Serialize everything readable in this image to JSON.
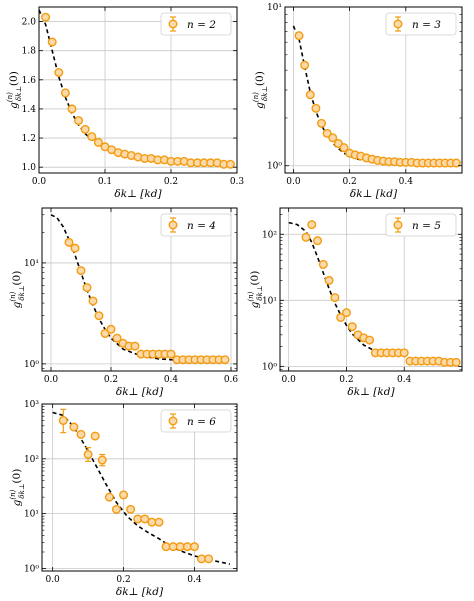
{
  "chart_data": [
    {
      "type": "scatter",
      "panel": "n2",
      "xlabel": "δk⊥ [kd]",
      "ylabel": "g(n)δk⊥(0)",
      "yscale": "linear",
      "xlim": [
        0,
        0.3
      ],
      "ylim": [
        0.96,
        2.1
      ],
      "xticks": [
        0.0,
        0.1,
        0.2,
        0.3
      ],
      "xtick_labels": [
        "0.0",
        "0.1",
        "0.2",
        "0.3"
      ],
      "yticks": [
        1.0,
        1.2,
        1.4,
        1.6,
        1.8,
        2.0
      ],
      "ytick_labels": [
        "1.0",
        "1.2",
        "1.4",
        "1.6",
        "1.8",
        "2.0"
      ],
      "grid": true,
      "legend": {
        "label": "n = 2",
        "position": "top-right"
      },
      "points": {
        "x": [
          0.01,
          0.02,
          0.03,
          0.04,
          0.05,
          0.06,
          0.07,
          0.08,
          0.09,
          0.1,
          0.11,
          0.12,
          0.13,
          0.14,
          0.15,
          0.16,
          0.17,
          0.18,
          0.19,
          0.2,
          0.21,
          0.22,
          0.23,
          0.24,
          0.25,
          0.26,
          0.27,
          0.28,
          0.29
        ],
        "y": [
          2.03,
          1.86,
          1.65,
          1.51,
          1.4,
          1.32,
          1.26,
          1.21,
          1.17,
          1.14,
          1.12,
          1.1,
          1.09,
          1.08,
          1.07,
          1.06,
          1.06,
          1.05,
          1.05,
          1.04,
          1.04,
          1.04,
          1.03,
          1.03,
          1.03,
          1.03,
          1.03,
          1.02,
          1.02
        ]
      },
      "fit": {
        "x": [
          0.0,
          0.01,
          0.02,
          0.03,
          0.04,
          0.05,
          0.06,
          0.07,
          0.08,
          0.1,
          0.12,
          0.14,
          0.16,
          0.18,
          0.2,
          0.22,
          0.25,
          0.28,
          0.295
        ],
        "y": [
          2.08,
          1.98,
          1.8,
          1.62,
          1.48,
          1.37,
          1.29,
          1.23,
          1.19,
          1.13,
          1.1,
          1.08,
          1.06,
          1.05,
          1.04,
          1.03,
          1.03,
          1.02,
          1.02
        ]
      }
    },
    {
      "type": "scatter",
      "panel": "n3",
      "xlabel": "δk⊥ [kd]",
      "ylabel": "g(n)δk⊥(0)",
      "yscale": "log",
      "xlim": [
        -0.03,
        0.6
      ],
      "ylim": [
        0.9,
        10
      ],
      "xticks": [
        0.0,
        0.2,
        0.4
      ],
      "xtick_labels": [
        "0.0",
        "0.2",
        "0.4"
      ],
      "yticks": [
        1,
        10
      ],
      "ytick_labels": [
        "10⁰",
        "10¹"
      ],
      "grid": true,
      "legend": {
        "label": "n = 3",
        "position": "top-right"
      },
      "points": {
        "x": [
          0.02,
          0.04,
          0.06,
          0.08,
          0.1,
          0.12,
          0.14,
          0.16,
          0.18,
          0.2,
          0.22,
          0.24,
          0.26,
          0.28,
          0.3,
          0.32,
          0.34,
          0.36,
          0.38,
          0.4,
          0.42,
          0.44,
          0.46,
          0.48,
          0.5,
          0.52,
          0.54,
          0.56,
          0.58
        ],
        "y": [
          6.6,
          4.3,
          2.8,
          2.3,
          1.85,
          1.6,
          1.5,
          1.38,
          1.3,
          1.2,
          1.17,
          1.15,
          1.12,
          1.1,
          1.08,
          1.07,
          1.06,
          1.06,
          1.05,
          1.05,
          1.05,
          1.04,
          1.04,
          1.04,
          1.04,
          1.04,
          1.04,
          1.04,
          1.04
        ]
      },
      "fit": {
        "x": [
          0.0,
          0.02,
          0.04,
          0.06,
          0.08,
          0.1,
          0.12,
          0.15,
          0.18,
          0.22,
          0.26,
          0.3,
          0.35,
          0.4,
          0.5,
          0.59
        ],
        "y": [
          7.6,
          6.3,
          4.2,
          2.9,
          2.2,
          1.8,
          1.55,
          1.33,
          1.2,
          1.11,
          1.07,
          1.05,
          1.04,
          1.03,
          1.03,
          1.03
        ]
      }
    },
    {
      "type": "scatter",
      "panel": "n4",
      "xlabel": "δk⊥ [kd]",
      "ylabel": "g(n)δk⊥(0)",
      "yscale": "log",
      "xlim": [
        -0.03,
        0.62
      ],
      "ylim": [
        0.85,
        35
      ],
      "xticks": [
        0.0,
        0.2,
        0.4,
        0.6
      ],
      "xtick_labels": [
        "0.0",
        "0.2",
        "0.4",
        "0.6"
      ],
      "yticks": [
        1,
        10
      ],
      "ytick_labels": [
        "10⁰",
        "10¹"
      ],
      "grid": true,
      "legend": {
        "label": "n = 4",
        "position": "top-right"
      },
      "points": {
        "x": [
          0.06,
          0.08,
          0.1,
          0.12,
          0.14,
          0.16,
          0.18,
          0.2,
          0.22,
          0.24,
          0.26,
          0.28,
          0.3,
          0.32,
          0.34,
          0.36,
          0.38,
          0.4,
          0.42,
          0.44,
          0.46,
          0.48,
          0.5,
          0.52,
          0.54,
          0.56,
          0.58
        ],
        "y": [
          16.0,
          14.0,
          8.4,
          5.7,
          4.2,
          3.0,
          2.0,
          2.2,
          1.8,
          1.6,
          1.5,
          1.5,
          1.25,
          1.25,
          1.25,
          1.25,
          1.25,
          1.25,
          1.1,
          1.1,
          1.1,
          1.1,
          1.1,
          1.1,
          1.1,
          1.1,
          1.1
        ]
      },
      "fit": {
        "x": [
          0.0,
          0.02,
          0.04,
          0.06,
          0.08,
          0.1,
          0.12,
          0.14,
          0.16,
          0.18,
          0.2,
          0.24,
          0.3,
          0.36,
          0.44,
          0.52,
          0.59
        ],
        "y": [
          30.0,
          28.0,
          23.0,
          17.0,
          12.0,
          8.0,
          5.4,
          3.8,
          2.8,
          2.2,
          1.8,
          1.4,
          1.2,
          1.12,
          1.08,
          1.06,
          1.05
        ]
      }
    },
    {
      "type": "scatter",
      "panel": "n5",
      "xlabel": "δk⊥ [kd]",
      "ylabel": "g(n)δk⊥(0)",
      "yscale": "log",
      "xlim": [
        -0.03,
        0.6
      ],
      "ylim": [
        0.85,
        250
      ],
      "xticks": [
        0.0,
        0.2,
        0.4
      ],
      "xtick_labels": [
        "0.0",
        "0.2",
        "0.4"
      ],
      "yticks": [
        1,
        10,
        100
      ],
      "ytick_labels": [
        "10⁰",
        "10¹",
        "10²"
      ],
      "grid": true,
      "legend": {
        "label": "n = 5",
        "position": "top-right"
      },
      "points": {
        "x": [
          0.06,
          0.08,
          0.1,
          0.12,
          0.14,
          0.16,
          0.18,
          0.2,
          0.22,
          0.24,
          0.26,
          0.28,
          0.3,
          0.32,
          0.34,
          0.36,
          0.38,
          0.4,
          0.42,
          0.44,
          0.46,
          0.48,
          0.5,
          0.52,
          0.54,
          0.56,
          0.58
        ],
        "y": [
          90,
          140,
          80,
          35,
          20,
          11,
          5.5,
          6.5,
          4.0,
          3.0,
          2.7,
          2.5,
          1.6,
          1.6,
          1.6,
          1.6,
          1.6,
          1.6,
          1.2,
          1.2,
          1.2,
          1.2,
          1.2,
          1.2,
          1.15,
          1.15,
          1.15
        ]
      },
      "fit": {
        "x": [
          0.0,
          0.03,
          0.06,
          0.08,
          0.1,
          0.12,
          0.14,
          0.16,
          0.18,
          0.2,
          0.22,
          0.26,
          0.3,
          0.36,
          0.4,
          0.42,
          0.48,
          0.59
        ],
        "y": [
          150,
          140,
          110,
          75,
          45,
          26,
          15,
          9,
          6,
          4.2,
          3.1,
          2.1,
          1.7,
          1.5,
          1.45,
          1.3,
          1.2,
          1.15
        ]
      }
    },
    {
      "type": "scatter",
      "panel": "n6",
      "xlabel": "δk⊥ [kd]",
      "ylabel": "g(n)δk⊥(0)",
      "yscale": "log",
      "xlim": [
        -0.03,
        0.52
      ],
      "ylim": [
        0.9,
        1000
      ],
      "xticks": [
        0.0,
        0.2,
        0.4
      ],
      "xtick_labels": [
        "0.0",
        "0.2",
        "0.4"
      ],
      "yticks": [
        1,
        10,
        100,
        1000
      ],
      "ytick_labels": [
        "10⁰",
        "10¹",
        "10²",
        "10³"
      ],
      "grid": true,
      "legend": {
        "label": "n = 6",
        "position": "top-right"
      },
      "points": {
        "x": [
          0.03,
          0.06,
          0.08,
          0.1,
          0.12,
          0.14,
          0.16,
          0.18,
          0.2,
          0.22,
          0.24,
          0.26,
          0.28,
          0.3,
          0.32,
          0.34,
          0.36,
          0.38,
          0.4,
          0.42,
          0.44
        ],
        "y": [
          500,
          380,
          280,
          120,
          260,
          95,
          20,
          12,
          22,
          12,
          8,
          8,
          7,
          7,
          2.5,
          2.5,
          2.5,
          2.5,
          2.5,
          1.5,
          1.5
        ]
      },
      "errorbars": {
        "x": [
          0.03,
          0.1,
          0.14
        ],
        "low": [
          300,
          90,
          75
        ],
        "high": [
          800,
          160,
          120
        ]
      },
      "fit": {
        "x": [
          0.0,
          0.03,
          0.06,
          0.09,
          0.12,
          0.15,
          0.18,
          0.21,
          0.24,
          0.27,
          0.3,
          0.33,
          0.36,
          0.4,
          0.44,
          0.5
        ],
        "y": [
          700,
          620,
          380,
          180,
          80,
          35,
          16,
          9,
          6,
          4.5,
          3.5,
          2.6,
          2.1,
          1.7,
          1.45,
          1.2
        ]
      }
    }
  ]
}
